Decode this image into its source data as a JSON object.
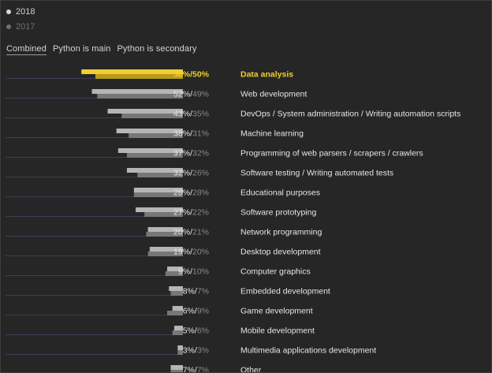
{
  "legend": {
    "year_2018": "2018",
    "year_2017": "2017"
  },
  "tabs": [
    {
      "label": "Combined",
      "active": true
    },
    {
      "label": "Python is main",
      "active": false
    },
    {
      "label": "Python is secondary",
      "active": false
    }
  ],
  "colors": {
    "background": "#262626",
    "bar_2018": "#b5b5b5",
    "bar_2017": "#777777",
    "highlight_2018": "#f2cf2f",
    "highlight_2017": "#b79a1e",
    "baseline": "#3d3d55",
    "label_text": "#e6e6e6",
    "secondary_text": "#8a8a8a"
  },
  "chart_data": {
    "type": "bar",
    "orientation": "horizontal",
    "highlighted_category": "Data analysis",
    "series": [
      {
        "name": "2018",
        "values": [
          58,
          52,
          43,
          38,
          37,
          32,
          28,
          27,
          20,
          19,
          9,
          8,
          6,
          5,
          3,
          7
        ]
      },
      {
        "name": "2017",
        "values": [
          50,
          49,
          35,
          31,
          32,
          26,
          28,
          22,
          21,
          20,
          10,
          7,
          9,
          6,
          3,
          7
        ]
      }
    ],
    "categories": [
      "Data analysis",
      "Web development",
      "DevOps / System administration / Writing automation scripts",
      "Machine learning",
      "Programming of web parsers / scrapers / crawlers",
      "Software testing / Writing automated tests",
      "Educational purposes",
      "Software prototyping",
      "Network programming",
      "Desktop development",
      "Computer graphics",
      "Embedded development",
      "Game development",
      "Mobile development",
      "Multimedia applications development",
      "Other"
    ],
    "value_labels_2018": [
      "58%",
      "52%",
      "43%",
      "38%",
      "37%",
      "32%",
      "28%",
      "27%",
      "20%",
      "19%",
      "9%",
      "8%",
      "6%",
      "5%",
      "3%",
      "7%"
    ],
    "value_labels_2017": [
      "50%",
      "49%",
      "35%",
      "31%",
      "32%",
      "26%",
      "28%",
      "22%",
      "21%",
      "20%",
      "10%",
      "7%",
      "9%",
      "6%",
      "3%",
      "7%"
    ],
    "separator": "/",
    "xlim": [
      0,
      58
    ]
  }
}
